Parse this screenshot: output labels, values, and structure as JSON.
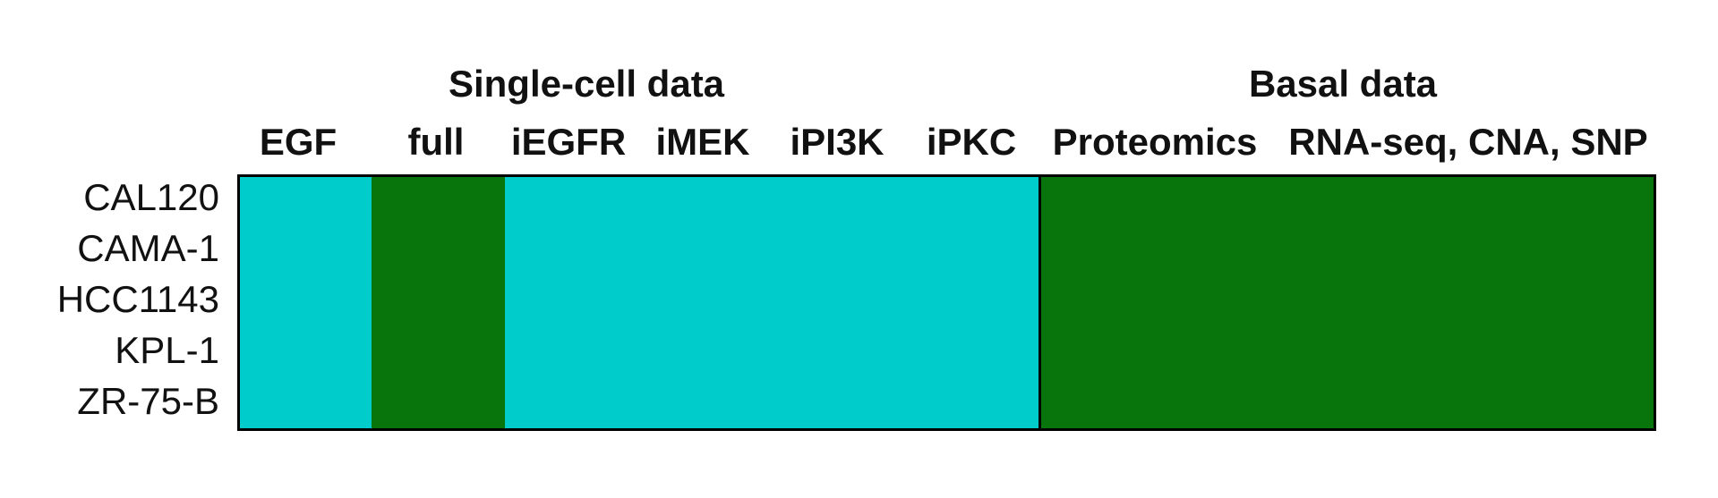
{
  "colors": {
    "cyan": "#00CCCC",
    "green": "#07750B",
    "border": "#000000"
  },
  "groups": [
    {
      "title": "Single-cell data"
    },
    {
      "title": "Basal data"
    }
  ],
  "columns": [
    {
      "label": "EGF",
      "color": "cyan"
    },
    {
      "label": "full",
      "color": "green"
    },
    {
      "label": "iEGFR",
      "color": "cyan"
    },
    {
      "label": "iMEK",
      "color": "cyan"
    },
    {
      "label": "iPI3K",
      "color": "cyan"
    },
    {
      "label": "iPKC",
      "color": "cyan"
    },
    {
      "label": "Proteomics",
      "color": "green"
    },
    {
      "label": "RNA-seq, CNA, SNP",
      "color": "green"
    }
  ],
  "rows": [
    {
      "label": "CAL120"
    },
    {
      "label": "CAMA-1"
    },
    {
      "label": "HCC1143"
    },
    {
      "label": "KPL-1"
    },
    {
      "label": "ZR-75-B"
    }
  ]
}
